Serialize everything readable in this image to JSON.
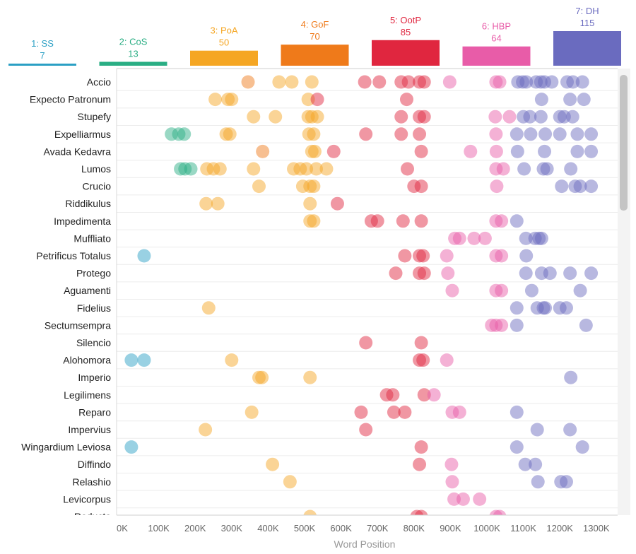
{
  "chart_data": {
    "type": "scatter",
    "xlabel": "Word Position",
    "xlim": [
      0,
      1300000
    ],
    "x_ticks": [
      "0K",
      "100K",
      "200K",
      "300K",
      "400K",
      "500K",
      "600K",
      "700K",
      "800K",
      "900K",
      "1000K",
      "1100K",
      "1200K",
      "1300K"
    ],
    "x_tick_values": [
      0,
      100000,
      200000,
      300000,
      400000,
      500000,
      600000,
      700000,
      800000,
      900000,
      1000000,
      1100000,
      1200000,
      1300000
    ],
    "books": [
      {
        "name": "1: SS",
        "count": 7,
        "color": "#2a9fc4",
        "start": 0,
        "end": 200000
      },
      {
        "name": "2: CoS",
        "count": 13,
        "color": "#2aae84",
        "start": 200000,
        "end": 400000
      },
      {
        "name": "3: PoA",
        "count": 50,
        "color": "#f5a623",
        "start": 400000,
        "end": 600000
      },
      {
        "name": "4: GoF",
        "count": 70,
        "color": "#ef7a1a",
        "start": 600000,
        "end": 800000
      },
      {
        "name": "5: OotP",
        "count": 85,
        "color": "#e0263f",
        "start": 800000,
        "end": 1000000
      },
      {
        "name": "6: HBP",
        "count": 64,
        "color": "#e85ca8",
        "start": 1000000,
        "end": 1200000
      },
      {
        "name": "7: DH",
        "count": 115,
        "color": "#6a6bbf",
        "start": 1200000,
        "end": 1400000
      }
    ],
    "series": [
      {
        "name": "Accio",
        "points": [
          [
            345000,
            4
          ],
          [
            430000,
            3
          ],
          [
            465000,
            3
          ],
          [
            520000,
            3
          ],
          [
            665000,
            5
          ],
          [
            705000,
            5
          ],
          [
            765000,
            5
          ],
          [
            785000,
            5
          ],
          [
            815000,
            5
          ],
          [
            828000,
            5
          ],
          [
            898000,
            6
          ],
          [
            1025000,
            6
          ],
          [
            1035000,
            6
          ],
          [
            1085000,
            7
          ],
          [
            1098000,
            7
          ],
          [
            1108000,
            7
          ],
          [
            1135000,
            7
          ],
          [
            1148000,
            7
          ],
          [
            1158000,
            7
          ],
          [
            1178000,
            7
          ],
          [
            1220000,
            7
          ],
          [
            1236000,
            7
          ],
          [
            1262000,
            7
          ]
        ]
      },
      {
        "name": "Expecto Patronum",
        "points": [
          [
            255000,
            3
          ],
          [
            290000,
            3
          ],
          [
            300000,
            3
          ],
          [
            510000,
            3
          ],
          [
            535000,
            5
          ],
          [
            780000,
            5
          ],
          [
            1150000,
            7
          ],
          [
            1228000,
            7
          ],
          [
            1266000,
            7
          ]
        ]
      },
      {
        "name": "Stupefy",
        "points": [
          [
            360000,
            3
          ],
          [
            420000,
            3
          ],
          [
            510000,
            3
          ],
          [
            520000,
            3
          ],
          [
            535000,
            3
          ],
          [
            765000,
            5
          ],
          [
            815000,
            5
          ],
          [
            828000,
            5
          ],
          [
            1023000,
            6
          ],
          [
            1062000,
            6
          ],
          [
            1100000,
            7
          ],
          [
            1118000,
            7
          ],
          [
            1148000,
            7
          ],
          [
            1200000,
            7
          ],
          [
            1212000,
            7
          ],
          [
            1235000,
            7
          ]
        ]
      },
      {
        "name": "Expelliarmus",
        "points": [
          [
            135000,
            2
          ],
          [
            155000,
            2
          ],
          [
            170000,
            2
          ],
          [
            285000,
            3
          ],
          [
            295000,
            3
          ],
          [
            512000,
            3
          ],
          [
            525000,
            3
          ],
          [
            668000,
            5
          ],
          [
            765000,
            5
          ],
          [
            815000,
            5
          ],
          [
            1025000,
            6
          ],
          [
            1082000,
            7
          ],
          [
            1120000,
            7
          ],
          [
            1160000,
            7
          ],
          [
            1200000,
            7
          ],
          [
            1248000,
            7
          ],
          [
            1286000,
            7
          ]
        ]
      },
      {
        "name": "Avada Kedavra",
        "points": [
          [
            385000,
            4
          ],
          [
            520000,
            3
          ],
          [
            528000,
            3
          ],
          [
            580000,
            5
          ],
          [
            820000,
            5
          ],
          [
            955000,
            6
          ],
          [
            1026000,
            6
          ],
          [
            1084000,
            7
          ],
          [
            1158000,
            7
          ],
          [
            1248000,
            7
          ],
          [
            1286000,
            7
          ]
        ]
      },
      {
        "name": "Lumos",
        "points": [
          [
            160000,
            2
          ],
          [
            172000,
            2
          ],
          [
            188000,
            2
          ],
          [
            232000,
            3
          ],
          [
            250000,
            3
          ],
          [
            268000,
            3
          ],
          [
            360000,
            3
          ],
          [
            470000,
            3
          ],
          [
            488000,
            3
          ],
          [
            505000,
            3
          ],
          [
            532000,
            3
          ],
          [
            560000,
            3
          ],
          [
            782000,
            5
          ],
          [
            1025000,
            6
          ],
          [
            1045000,
            6
          ],
          [
            1102000,
            7
          ],
          [
            1155000,
            7
          ],
          [
            1165000,
            7
          ],
          [
            1230000,
            7
          ]
        ]
      },
      {
        "name": "Crucio",
        "points": [
          [
            375000,
            3
          ],
          [
            495000,
            3
          ],
          [
            515000,
            3
          ],
          [
            525000,
            3
          ],
          [
            800000,
            5
          ],
          [
            820000,
            5
          ],
          [
            1027000,
            6
          ],
          [
            1205000,
            7
          ],
          [
            1242000,
            7
          ],
          [
            1256000,
            7
          ],
          [
            1286000,
            7
          ]
        ]
      },
      {
        "name": "Riddikulus",
        "points": [
          [
            230000,
            3
          ],
          [
            262000,
            3
          ],
          [
            515000,
            3
          ],
          [
            590000,
            5
          ]
        ]
      },
      {
        "name": "Impedimenta",
        "points": [
          [
            515000,
            3
          ],
          [
            525000,
            3
          ],
          [
            683000,
            5
          ],
          [
            700000,
            5
          ],
          [
            770000,
            5
          ],
          [
            820000,
            5
          ],
          [
            1025000,
            6
          ],
          [
            1040000,
            6
          ],
          [
            1082000,
            7
          ]
        ]
      },
      {
        "name": "Muffliato",
        "points": [
          [
            912000,
            6
          ],
          [
            925000,
            6
          ],
          [
            965000,
            6
          ],
          [
            995000,
            6
          ],
          [
            1107000,
            7
          ],
          [
            1132000,
            7
          ],
          [
            1143000,
            7
          ],
          [
            1150000,
            7
          ]
        ]
      },
      {
        "name": "Petrificus Totalus",
        "points": [
          [
            60000,
            1
          ],
          [
            775000,
            5
          ],
          [
            815000,
            5
          ],
          [
            825000,
            5
          ],
          [
            890000,
            6
          ],
          [
            1025000,
            6
          ],
          [
            1040000,
            6
          ],
          [
            1108000,
            7
          ]
        ]
      },
      {
        "name": "Protego",
        "points": [
          [
            750000,
            5
          ],
          [
            815000,
            5
          ],
          [
            828000,
            5
          ],
          [
            893000,
            6
          ],
          [
            1107000,
            7
          ],
          [
            1150000,
            7
          ],
          [
            1173000,
            7
          ],
          [
            1228000,
            7
          ],
          [
            1286000,
            7
          ]
        ]
      },
      {
        "name": "Aguamenti",
        "points": [
          [
            905000,
            6
          ],
          [
            1025000,
            6
          ],
          [
            1040000,
            6
          ],
          [
            1123000,
            7
          ],
          [
            1256000,
            7
          ]
        ]
      },
      {
        "name": "Fidelius",
        "points": [
          [
            237000,
            3
          ],
          [
            1082000,
            7
          ],
          [
            1138000,
            7
          ],
          [
            1155000,
            7
          ],
          [
            1160000,
            7
          ],
          [
            1200000,
            7
          ],
          [
            1218000,
            7
          ]
        ]
      },
      {
        "name": "Sectumsempra",
        "points": [
          [
            1013000,
            6
          ],
          [
            1025000,
            6
          ],
          [
            1040000,
            6
          ],
          [
            1082000,
            7
          ],
          [
            1272000,
            7
          ]
        ]
      },
      {
        "name": "Silencio",
        "points": [
          [
            668000,
            5
          ],
          [
            820000,
            5
          ]
        ]
      },
      {
        "name": "Alohomora",
        "points": [
          [
            25000,
            1
          ],
          [
            60000,
            1
          ],
          [
            300000,
            3
          ],
          [
            815000,
            5
          ],
          [
            825000,
            5
          ],
          [
            890000,
            6
          ]
        ]
      },
      {
        "name": "Imperio",
        "points": [
          [
            375000,
            3
          ],
          [
            383000,
            3
          ],
          [
            515000,
            3
          ],
          [
            1230000,
            7
          ]
        ]
      },
      {
        "name": "Legilimens",
        "points": [
          [
            725000,
            5
          ],
          [
            742000,
            5
          ],
          [
            828000,
            5
          ],
          [
            855000,
            6
          ]
        ]
      },
      {
        "name": "Reparo",
        "points": [
          [
            355000,
            3
          ],
          [
            655000,
            5
          ],
          [
            745000,
            5
          ],
          [
            775000,
            5
          ],
          [
            905000,
            6
          ],
          [
            925000,
            6
          ],
          [
            1082000,
            7
          ]
        ]
      },
      {
        "name": "Impervius",
        "points": [
          [
            228000,
            3
          ],
          [
            668000,
            5
          ],
          [
            1138000,
            7
          ],
          [
            1228000,
            7
          ]
        ]
      },
      {
        "name": "Wingardium Leviosa",
        "points": [
          [
            25000,
            1
          ],
          [
            820000,
            5
          ],
          [
            1082000,
            7
          ],
          [
            1262000,
            7
          ]
        ]
      },
      {
        "name": "Diffindo",
        "points": [
          [
            412000,
            3
          ],
          [
            815000,
            5
          ],
          [
            903000,
            6
          ],
          [
            1105000,
            7
          ],
          [
            1133000,
            7
          ]
        ]
      },
      {
        "name": "Relashio",
        "points": [
          [
            460000,
            3
          ],
          [
            905000,
            6
          ],
          [
            1140000,
            7
          ],
          [
            1203000,
            7
          ],
          [
            1218000,
            7
          ]
        ]
      },
      {
        "name": "Levicorpus",
        "points": [
          [
            910000,
            6
          ],
          [
            935000,
            6
          ],
          [
            980000,
            6
          ]
        ]
      },
      {
        "name": "Reducto",
        "points": [
          [
            515000,
            3
          ],
          [
            808000,
            5
          ],
          [
            820000,
            5
          ],
          [
            1025000,
            6
          ],
          [
            1035000,
            6
          ]
        ]
      }
    ]
  }
}
